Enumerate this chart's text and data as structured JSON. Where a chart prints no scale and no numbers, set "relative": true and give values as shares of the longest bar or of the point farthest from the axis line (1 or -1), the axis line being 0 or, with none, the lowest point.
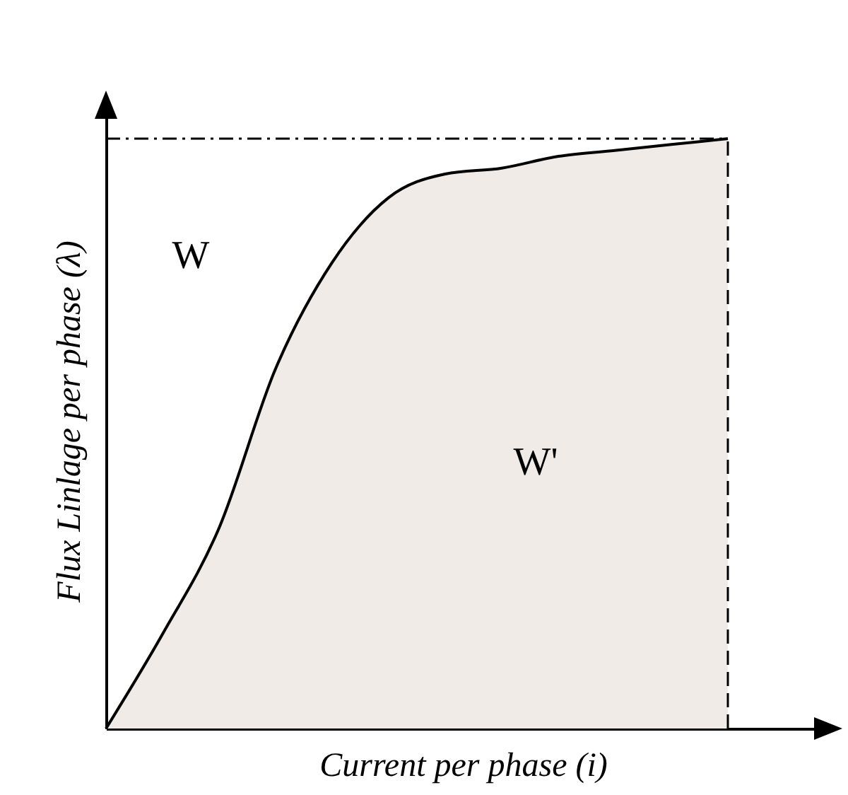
{
  "chart_data": {
    "type": "area",
    "relative": true,
    "xlabel": "Current per phase (i)",
    "ylabel": "Flux Linlage per phase (λ)",
    "categories": [
      null,
      null,
      null,
      null,
      null,
      null,
      null,
      null,
      null,
      null,
      null,
      null
    ],
    "series": [
      {
        "color": "#f1ebe8",
        "values": [
          0,
          0.16,
          0.34,
          0.61,
          0.79,
          0.9,
          0.94,
          0.95,
          0.97,
          0.98,
          0.99,
          1
        ]
      }
    ],
    "ref_lines": [
      {
        "axis": "y",
        "value": 1,
        "line_style": "dashed"
      }
    ],
    "annotations": [
      "W",
      "W'"
    ],
    "grid": false
  }
}
